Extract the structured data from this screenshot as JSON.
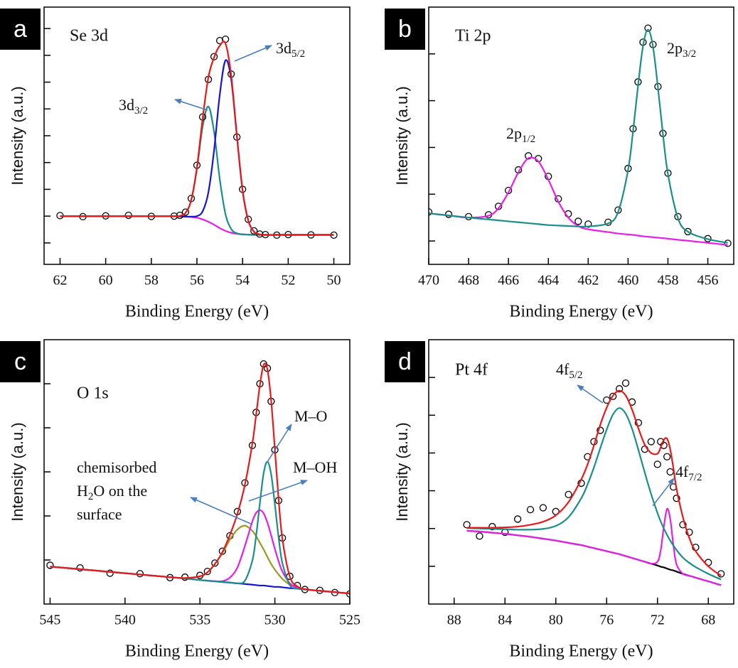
{
  "chart_data": [
    {
      "type": "line",
      "letter": "a",
      "title": "Se 3d",
      "xlabel": "Binding Energy (eV)",
      "ylabel": "Intensity (a.u.)",
      "x": [
        62,
        61,
        60,
        59,
        58,
        57,
        56.75,
        56.5,
        56.25,
        56,
        55.75,
        55.5,
        55.25,
        55,
        54.75,
        54.5,
        54.25,
        54,
        53.75,
        53.5,
        53.25,
        53,
        52.5,
        52,
        51,
        50
      ],
      "xlim": [
        62.7,
        49.3
      ],
      "xticks": [
        62,
        60,
        58,
        56,
        54,
        52,
        50
      ],
      "ylim": [
        -0.8,
        8.8
      ],
      "yticks": [
        0,
        1,
        2,
        3,
        4,
        5,
        6,
        7,
        8
      ],
      "series": [
        {
          "style": "line",
          "color": "#e61ee6",
          "values": [
            1.0,
            1.0,
            1.0,
            1.0,
            1.0,
            1.0,
            0.99,
            0.98,
            0.97,
            0.94,
            0.88,
            0.79,
            0.68,
            0.55,
            0.45,
            0.38,
            0.34,
            0.32,
            0.31,
            0.3,
            0.3,
            0.3,
            0.3,
            0.3,
            0.3,
            0.3
          ]
        },
        {
          "style": "line",
          "color": "#1a8f8a",
          "values": [
            1.0,
            1.0,
            1.0,
            1.0,
            1.0,
            1.0,
            1.01,
            1.12,
            1.6,
            2.77,
            4.35,
            5.09,
            4.15,
            2.38,
            1.08,
            0.52,
            0.36,
            0.32,
            0.31,
            0.3,
            0.3,
            0.3,
            0.3,
            0.3,
            0.3,
            0.3
          ]
        },
        {
          "style": "line",
          "color": "#1515d6",
          "values": [
            1.0,
            1.0,
            1.0,
            1.0,
            1.0,
            1.0,
            0.99,
            0.98,
            0.98,
            1.0,
            1.18,
            1.88,
            3.45,
            5.53,
            6.81,
            6.11,
            3.99,
            1.96,
            0.84,
            0.42,
            0.32,
            0.3,
            0.3,
            0.3,
            0.3,
            0.3
          ]
        },
        {
          "style": "markers",
          "color": "#000000",
          "values": [
            1.02,
            0.98,
            1.01,
            1.03,
            0.99,
            1.0,
            1.03,
            1.15,
            1.66,
            2.9,
            4.7,
            6.1,
            6.95,
            7.55,
            7.6,
            6.3,
            3.95,
            2.0,
            0.88,
            0.45,
            0.33,
            0.31,
            0.29,
            0.31,
            0.3,
            0.29
          ]
        },
        {
          "style": "line",
          "color": "#e8191b",
          "values": [
            1.0,
            1.0,
            1.0,
            1.0,
            1.0,
            1.0,
            1.01,
            1.12,
            1.61,
            2.83,
            4.65,
            6.18,
            6.92,
            7.36,
            7.44,
            6.25,
            4.01,
            1.96,
            0.84,
            0.42,
            0.32,
            0.3,
            0.3,
            0.3,
            0.3,
            0.3
          ]
        }
      ],
      "annotations": [
        {
          "lines": [
            [
              "3d",
              {
                "sub": "5/2"
              }
            ]
          ]
        },
        {
          "lines": [
            [
              "3d",
              {
                "sub": "3/2"
              }
            ]
          ]
        }
      ]
    },
    {
      "type": "line",
      "letter": "b",
      "title": "Ti 2p",
      "xlabel": "Binding Energy (eV)",
      "ylabel": "Intensity (a.u.)",
      "x": [
        470,
        469,
        468,
        467,
        466.5,
        466,
        465.5,
        465,
        464.5,
        464,
        463.5,
        463,
        462.5,
        462,
        461,
        460.5,
        460,
        459.75,
        459.5,
        459.25,
        459,
        458.75,
        458.5,
        458.25,
        458,
        457.5,
        457,
        456,
        455
      ],
      "xlim": [
        470,
        454.7
      ],
      "xticks": [
        470,
        468,
        466,
        464,
        462,
        460,
        458,
        456
      ],
      "ylim": [
        -0.5,
        5
      ],
      "yticks": [
        0,
        1,
        2,
        3,
        4
      ],
      "series": [
        {
          "style": "markers",
          "color": "#000000",
          "values": [
            0.62,
            0.57,
            0.52,
            0.56,
            0.74,
            1.08,
            1.52,
            1.82,
            1.76,
            1.38,
            0.9,
            0.58,
            0.42,
            0.36,
            0.4,
            0.66,
            1.55,
            2.4,
            3.4,
            4.25,
            4.55,
            4.2,
            3.3,
            2.3,
            1.45,
            0.52,
            0.2,
            0.05,
            -0.05
          ]
        },
        {
          "style": "line",
          "color": "#e61ee6",
          "values": [
            0.59,
            0.545,
            0.5,
            0.54,
            0.7,
            1.04,
            1.47,
            1.77,
            1.7,
            1.31,
            0.84,
            0.5,
            0.32,
            0.25,
            0.19,
            0.16,
            0.14,
            0.13,
            0.115,
            0.1,
            0.09,
            0.08,
            0.07,
            0.06,
            0.05,
            0.025,
            0.005,
            -0.04,
            -0.085
          ]
        },
        {
          "style": "line",
          "color": "#1a8f8a",
          "values": [
            0.59,
            0.545,
            0.5,
            0.46,
            0.44,
            0.42,
            0.4,
            0.38,
            0.36,
            0.34,
            0.33,
            0.32,
            0.31,
            0.31,
            0.375,
            0.62,
            1.52,
            2.35,
            3.32,
            4.17,
            4.52,
            4.15,
            3.27,
            2.28,
            1.43,
            0.49,
            0.2,
            0.04,
            -0.04
          ]
        }
      ],
      "annotations": [
        {
          "lines": [
            [
              "2p",
              {
                "sub": "3/2"
              }
            ]
          ]
        },
        {
          "lines": [
            [
              "2p",
              {
                "sub": "1/2"
              }
            ]
          ]
        }
      ]
    },
    {
      "type": "line",
      "letter": "c",
      "title": "O 1s",
      "xlabel": "Binding Energy (eV)",
      "ylabel": "Intensity (a.u.)",
      "x": [
        545,
        543,
        541,
        539,
        537,
        536,
        535,
        534.5,
        534,
        533.5,
        533,
        532.5,
        532,
        531.5,
        531.25,
        531,
        530.75,
        530.5,
        530.25,
        530,
        529.75,
        529.5,
        529,
        528.5,
        528,
        527,
        526,
        525
      ],
      "xlim": [
        545.4,
        525
      ],
      "xticks": [
        545,
        540,
        535,
        530,
        525
      ],
      "ylim": [
        0,
        6
      ],
      "yticks": [
        1,
        2,
        3,
        4,
        5
      ],
      "series": [
        {
          "style": "markers",
          "color": "#000000",
          "values": [
            0.88,
            0.82,
            0.7,
            0.69,
            0.6,
            0.61,
            0.65,
            0.74,
            0.93,
            1.2,
            1.55,
            2.1,
            2.75,
            3.6,
            4.35,
            5.0,
            5.45,
            5.35,
            4.6,
            3.5,
            2.35,
            1.5,
            0.63,
            0.42,
            0.33,
            0.31,
            0.26,
            0.23
          ]
        },
        {
          "style": "line",
          "color": "#1515d6",
          "values": [
            0.85,
            0.79,
            0.73,
            0.67,
            0.61,
            0.58,
            0.545,
            0.53,
            0.515,
            0.5,
            0.485,
            0.47,
            0.455,
            0.44,
            0.43,
            0.42,
            0.42,
            0.41,
            0.4,
            0.39,
            0.39,
            0.38,
            0.36,
            0.35,
            0.33,
            0.3,
            0.27,
            0.24
          ]
        },
        {
          "style": "line",
          "color": "#999a22",
          "values": [
            0.85,
            0.79,
            0.73,
            0.67,
            0.61,
            0.59,
            0.63,
            0.72,
            0.91,
            1.16,
            1.46,
            1.69,
            1.78,
            1.66,
            1.54,
            1.39,
            1.24,
            1.07,
            0.91,
            0.78,
            0.67,
            0.57,
            0.44,
            0.38,
            0.34,
            0.3,
            0.27,
            0.24
          ]
        },
        {
          "style": "line",
          "color": "#e61ee6",
          "values": [
            0.85,
            0.79,
            0.73,
            0.67,
            0.61,
            0.58,
            0.545,
            0.53,
            0.52,
            0.52,
            0.6,
            0.83,
            1.32,
            1.88,
            2.07,
            2.13,
            2.06,
            1.85,
            1.56,
            1.25,
            0.97,
            0.74,
            0.47,
            0.37,
            0.33,
            0.3,
            0.27,
            0.24
          ]
        },
        {
          "style": "line",
          "color": "#1a8f8a",
          "values": [
            0.85,
            0.79,
            0.73,
            0.67,
            0.61,
            0.58,
            0.545,
            0.53,
            0.515,
            0.5,
            0.49,
            0.47,
            0.53,
            0.99,
            1.55,
            2.29,
            2.97,
            3.23,
            2.95,
            2.26,
            1.51,
            0.93,
            0.43,
            0.35,
            0.33,
            0.3,
            0.27,
            0.24
          ]
        },
        {
          "style": "line",
          "color": "#e8191b",
          "values": [
            0.85,
            0.79,
            0.73,
            0.67,
            0.61,
            0.59,
            0.63,
            0.72,
            0.91,
            1.18,
            1.57,
            2.05,
            2.71,
            3.65,
            4.3,
            4.97,
            5.43,
            5.33,
            4.62,
            3.51,
            2.37,
            1.48,
            0.62,
            0.4,
            0.34,
            0.3,
            0.27,
            0.24
          ]
        }
      ],
      "annotations": [
        {
          "lines": [
            [
              "M–O"
            ]
          ]
        },
        {
          "lines": [
            [
              "M–OH"
            ]
          ]
        },
        {
          "lines": [
            [
              "chemisorbed"
            ],
            [
              "H",
              {
                "sub": "2"
              },
              "O on the"
            ],
            [
              "surface"
            ]
          ]
        }
      ]
    },
    {
      "type": "line",
      "letter": "d",
      "title": "Pt 4f",
      "xlabel": "Binding Energy (eV)",
      "ylabel": "Intensity (a.u.)",
      "x": [
        87,
        86,
        85,
        84,
        83,
        82,
        81,
        80,
        79,
        78,
        77.5,
        77,
        76.5,
        76,
        75.5,
        75,
        74.5,
        74,
        73.5,
        73,
        72.5,
        72,
        71.75,
        71.5,
        71.25,
        71,
        70.75,
        70.5,
        70,
        69.5,
        69,
        68,
        67
      ],
      "xlim": [
        90,
        66
      ],
      "xticks": [
        88,
        84,
        80,
        76,
        72,
        68
      ],
      "ylim": [
        0,
        7
      ],
      "yticks": [
        1,
        2,
        3,
        4,
        5,
        6
      ],
      "series": [
        {
          "style": "markers",
          "color": "#000000",
          "values": [
            2.1,
            1.8,
            2.05,
            1.9,
            2.25,
            2.5,
            2.55,
            2.45,
            2.9,
            3.2,
            3.9,
            4.3,
            4.6,
            5.4,
            5.5,
            5.7,
            5.85,
            5.35,
            4.8,
            4.1,
            4.3,
            3.7,
            4.3,
            4.2,
            3.9,
            3.5,
            3.1,
            2.8,
            2.1,
            1.9,
            1.5,
            1.1,
            0.8
          ]
        },
        {
          "style": "line",
          "color": "#000000",
          "values": [
            1.94,
            1.92,
            1.89,
            1.86,
            1.82,
            1.78,
            1.73,
            1.68,
            1.62,
            1.56,
            1.52,
            1.48,
            1.44,
            1.4,
            1.36,
            1.32,
            1.27,
            1.22,
            1.17,
            1.12,
            1.07,
            1.02,
            0.99,
            0.97,
            0.94,
            0.91,
            0.89,
            0.86,
            0.8,
            0.75,
            0.7,
            0.6,
            0.5
          ]
        },
        {
          "style": "line",
          "color": "#e61ee6",
          "values": [
            1.94,
            1.92,
            1.89,
            1.86,
            1.82,
            1.78,
            1.73,
            1.68,
            1.62,
            1.56,
            1.52,
            1.48,
            1.44,
            1.4,
            1.36,
            1.32,
            1.27,
            1.22,
            1.17,
            1.12,
            1.07,
            1.12,
            1.42,
            2.05,
            2.52,
            2.26,
            1.56,
            1.05,
            0.8,
            0.75,
            0.7,
            0.6,
            0.5
          ]
        },
        {
          "style": "line",
          "color": "#1a8f8a",
          "values": [
            2.01,
            2.0,
            1.99,
            1.98,
            1.97,
            1.97,
            1.99,
            2.07,
            2.3,
            2.8,
            3.17,
            3.62,
            4.13,
            4.62,
            5.02,
            5.19,
            5.04,
            4.64,
            4.08,
            3.48,
            2.91,
            2.41,
            2.19,
            2.0,
            1.83,
            1.68,
            1.55,
            1.43,
            1.23,
            1.09,
            0.98,
            0.8,
            0.65
          ]
        },
        {
          "style": "line",
          "color": "#e8191b",
          "values": [
            2.02,
            2.02,
            2.02,
            2.03,
            2.05,
            2.1,
            2.18,
            2.35,
            2.7,
            3.3,
            3.7,
            4.2,
            4.75,
            5.2,
            5.52,
            5.65,
            5.52,
            5.15,
            4.65,
            4.22,
            4.0,
            3.98,
            4.15,
            4.35,
            4.38,
            4.1,
            3.6,
            3.05,
            2.3,
            1.75,
            1.4,
            1.0,
            0.75
          ]
        }
      ],
      "annotations": [
        {
          "lines": [
            [
              "4f",
              {
                "sub": "5/2"
              }
            ]
          ]
        },
        {
          "lines": [
            [
              "4f",
              {
                "sub": "7/2"
              }
            ]
          ]
        }
      ]
    }
  ]
}
